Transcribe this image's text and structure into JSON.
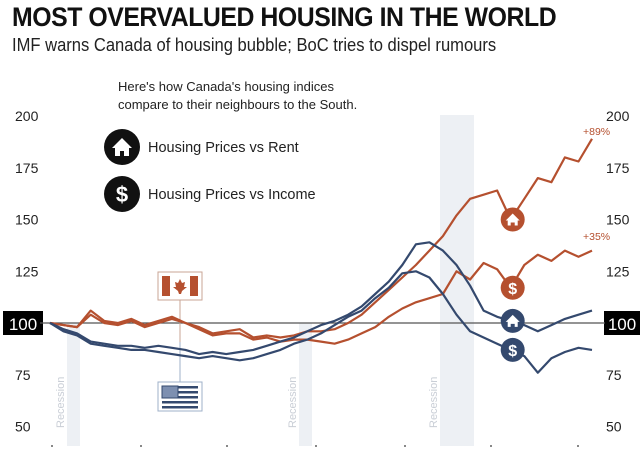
{
  "header": {
    "title": "MOST OVERVALUED HOUSING IN THE WORLD",
    "subtitle": "IMF warns Canada of housing bubble; BoC tries to dispel rumours"
  },
  "chart_data": {
    "type": "line",
    "title": "MOST OVERVALUED HOUSING IN THE WORLD",
    "subtitle": "IMF warns Canada of housing bubble; BoC tries to dispel rumours",
    "note": [
      "Here's how Canada's housing indices",
      "compare to their neighbours to the South."
    ],
    "xlabel": "",
    "ylabel": "",
    "ylim": [
      50,
      200
    ],
    "yticks": [
      200,
      175,
      150,
      125,
      100,
      75,
      50
    ],
    "baseline": 100,
    "baseline_label": "100",
    "x_tick_count": 7,
    "grid": false,
    "legend": {
      "placement": "top-left",
      "items": [
        {
          "icon": "house-icon",
          "label": "Housing Prices vs Rent"
        },
        {
          "icon": "dollar-icon",
          "label": "Housing Prices vs Income"
        }
      ]
    },
    "flags": [
      {
        "country": "Canada",
        "icon": "canada-flag-icon",
        "color": "#b5502f"
      },
      {
        "country": "United States",
        "icon": "us-flag-icon",
        "color": "#34496e"
      }
    ],
    "recessions": [
      {
        "label": "Recession",
        "start": 1.3,
        "end": 1.55
      },
      {
        "label": "Recession",
        "start": 5.75,
        "end": 6.0
      },
      {
        "label": "Recession",
        "start": 8.45,
        "end": 9.1
      }
    ],
    "x_points": 41,
    "series": [
      {
        "name": "Canada - Housing Prices vs Rent",
        "country": "Canada",
        "measure": "rent",
        "color": "#b5502f",
        "end_label": "+89%",
        "values": [
          100,
          99,
          98,
          106,
          101,
          100,
          102,
          99,
          101,
          103,
          100,
          98,
          95,
          96,
          97,
          93,
          94,
          93,
          94,
          96,
          96,
          97,
          100,
          104,
          110,
          116,
          122,
          128,
          135,
          142,
          152,
          160,
          162,
          164,
          150,
          160,
          170,
          168,
          180,
          178,
          189
        ]
      },
      {
        "name": "Canada - Housing Prices vs Income",
        "country": "Canada",
        "measure": "income",
        "color": "#b5502f",
        "end_label": "+35%",
        "values": [
          100,
          99,
          98,
          104,
          100,
          99,
          101,
          98,
          100,
          102,
          100,
          97,
          94,
          95,
          95,
          92,
          93,
          91,
          92,
          92,
          91,
          90,
          92,
          95,
          98,
          103,
          107,
          110,
          112,
          114,
          125,
          121,
          129,
          126,
          117,
          128,
          133,
          130,
          135,
          132,
          135
        ]
      },
      {
        "name": "US - Housing Prices vs Rent",
        "country": "United States",
        "measure": "rent",
        "color": "#34496e",
        "values": [
          100,
          97,
          95,
          91,
          90,
          89,
          89,
          88,
          89,
          88,
          87,
          85,
          86,
          85,
          86,
          87,
          89,
          91,
          93,
          96,
          99,
          101,
          104,
          108,
          114,
          120,
          128,
          138,
          139,
          135,
          128,
          118,
          106,
          103,
          101,
          99,
          96,
          99,
          102,
          104,
          106
        ]
      },
      {
        "name": "US - Housing Prices vs Income",
        "country": "United States",
        "measure": "income",
        "color": "#34496e",
        "values": [
          100,
          96,
          94,
          90,
          89,
          88,
          87,
          87,
          86,
          85,
          84,
          83,
          84,
          83,
          82,
          83,
          85,
          87,
          90,
          92,
          95,
          99,
          103,
          106,
          112,
          117,
          124,
          125,
          122,
          114,
          104,
          96,
          93,
          90,
          87,
          84,
          76,
          83,
          86,
          88,
          87
        ]
      }
    ]
  }
}
